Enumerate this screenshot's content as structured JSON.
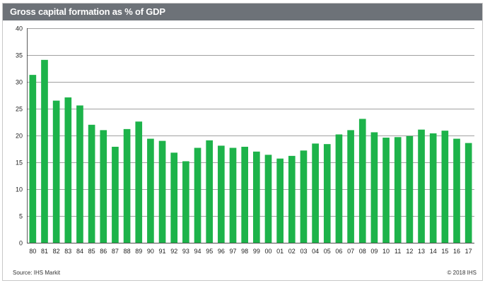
{
  "title": "Gross capital formation as % of GDP",
  "source": "Source:  IHS Markit",
  "copyright": "© 2018  IHS",
  "colors": {
    "bar": "#1db34a",
    "title_bg": "#6d7278",
    "grid": "#444444"
  },
  "chart_data": {
    "type": "bar",
    "title": "Gross capital formation as % of GDP",
    "xlabel": "",
    "ylabel": "",
    "ylim": [
      0,
      40
    ],
    "yticks": [
      0,
      5,
      10,
      15,
      20,
      25,
      30,
      35,
      40
    ],
    "grid": true,
    "categories": [
      "80",
      "81",
      "82",
      "83",
      "84",
      "85",
      "86",
      "87",
      "88",
      "89",
      "90",
      "91",
      "92",
      "93",
      "94",
      "95",
      "96",
      "97",
      "98",
      "99",
      "00",
      "01",
      "02",
      "03",
      "04",
      "05",
      "06",
      "07",
      "08",
      "09",
      "10",
      "11",
      "12",
      "13",
      "14",
      "15",
      "16",
      "17"
    ],
    "values": [
      31.3,
      34.1,
      26.5,
      27.1,
      25.6,
      22.0,
      21.0,
      17.9,
      21.2,
      22.6,
      19.4,
      19.0,
      16.8,
      15.2,
      17.7,
      19.1,
      18.1,
      17.7,
      17.9,
      17.0,
      16.4,
      15.7,
      16.2,
      17.2,
      18.5,
      18.4,
      20.2,
      21.0,
      23.1,
      20.6,
      19.6,
      19.7,
      19.9,
      21.1,
      20.4,
      20.9,
      19.4,
      18.6
    ]
  }
}
